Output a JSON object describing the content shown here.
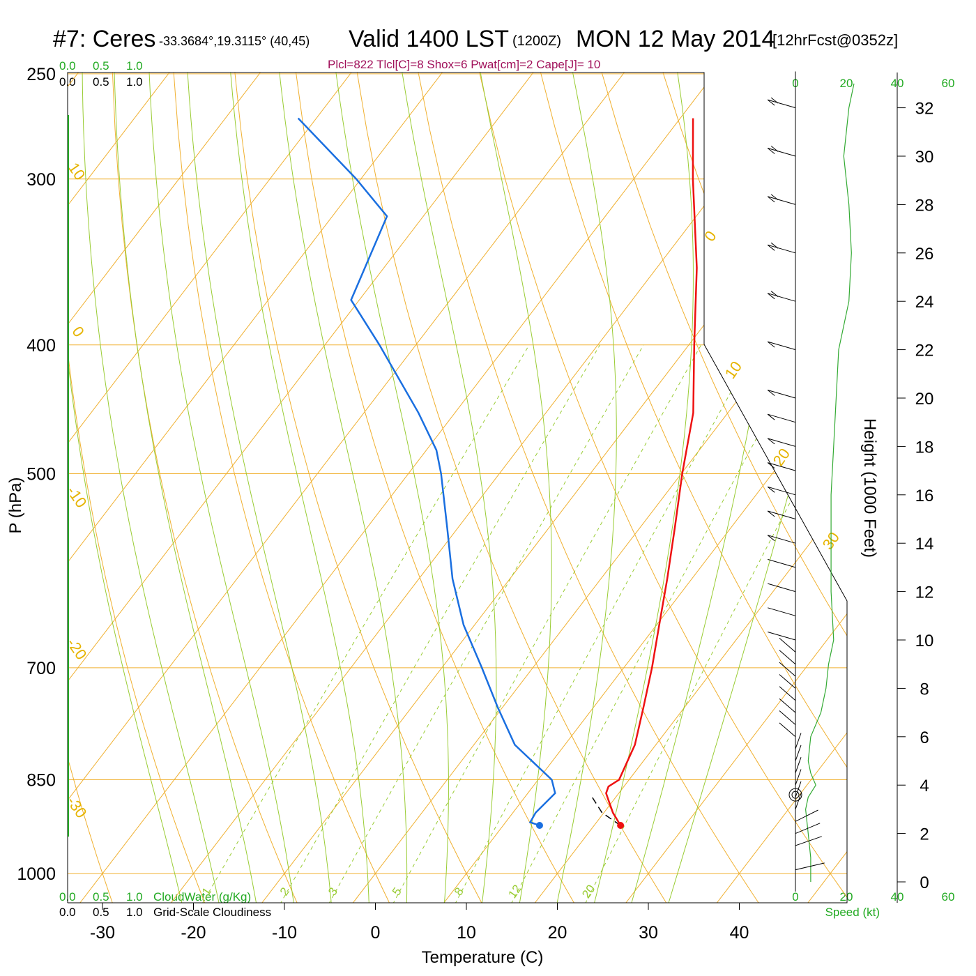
{
  "header": {
    "station": "#7: Ceres",
    "coords": "-33.3684°,19.3115° (40,45)",
    "valid": "Valid 1400 LST",
    "zulu": "(1200Z)",
    "date": "MON 12 May 2014",
    "forecast": "[12hrFcst@0352z]",
    "params": "Plcl=822 Tlcl[C]=8 Shox=6 Pwat[cm]=2 Cape[J]= 10"
  },
  "cloud_scale": {
    "ticks": [
      "0.0",
      "0.5",
      "1.0"
    ],
    "cloudwater_label": "CloudWater (g/Kg)",
    "cloudiness_label": "Grid-Scale Cloudiness"
  },
  "speed_axis": {
    "ticks": [
      "0",
      "20",
      "40",
      "60"
    ],
    "label": "Speed (kt)"
  },
  "colors": {
    "temperature": "#ee1111",
    "dewpoint": "#1a6fe0",
    "isotherm": "#f0b030",
    "dry_adiabat": "#f0b030",
    "moist_adiabat": "#99cc33",
    "mixing_ratio": "#99cc33",
    "speed": "#33aa33",
    "params": "#a0105a"
  },
  "chart_data": {
    "type": "line",
    "diagram": "skew-t log-p",
    "xlabel": "Temperature (C)",
    "ylabel": "P (hPa)",
    "y2label": "Height (1000 Feet)",
    "x_ticks": [
      -30,
      -20,
      -10,
      0,
      10,
      20,
      30,
      40
    ],
    "p_ticks": [
      250,
      300,
      400,
      500,
      700,
      850,
      1000
    ],
    "height_ticks": [
      0,
      2,
      4,
      6,
      8,
      10,
      12,
      14,
      16,
      18,
      20,
      22,
      24,
      26,
      28,
      30,
      32
    ],
    "p_range": [
      1000,
      250
    ],
    "isotherm_labels": [
      {
        "t": 0,
        "text": "0"
      },
      {
        "t": 10,
        "text": "10"
      },
      {
        "t": 20,
        "text": "20"
      },
      {
        "t": 30,
        "text": "30"
      },
      {
        "t": 10,
        "text": "10"
      },
      {
        "t": 0,
        "text": "0"
      },
      {
        "t": -10,
        "text": "-10"
      },
      {
        "t": -20,
        "text": "-20"
      },
      {
        "t": -30,
        "text": "-30"
      }
    ],
    "mixing_ratio_labels": [
      "1",
      "2",
      "3",
      "5",
      "8",
      "12",
      "20"
    ],
    "mixing_ratio_values": [
      1,
      2,
      3,
      5,
      8,
      12,
      20
    ],
    "temperature_profile": {
      "name": "Temperature",
      "p": [
        920,
        900,
        880,
        870,
        860,
        850,
        800,
        750,
        700,
        650,
        600,
        550,
        500,
        450,
        400,
        350,
        300,
        270
      ],
      "t": [
        22.9,
        21.0,
        19.4,
        18.6,
        18.3,
        18.9,
        17.7,
        15.5,
        13.1,
        10.3,
        7.3,
        3.9,
        0.1,
        -3.8,
        -9.4,
        -15.6,
        -23.5,
        -28.6
      ]
    },
    "dewpoint_profile": {
      "name": "Dew point",
      "p": [
        920,
        915,
        900,
        870,
        850,
        800,
        750,
        700,
        650,
        600,
        550,
        500,
        480,
        450,
        400,
        370,
        320,
        300,
        270
      ],
      "t": [
        14.0,
        12.7,
        12.5,
        13.0,
        11.5,
        4.5,
        -0.5,
        -5.6,
        -11.2,
        -16.3,
        -21.1,
        -26.4,
        -28.9,
        -34.0,
        -44.0,
        -50.9,
        -54.0,
        -60.5,
        -72.0
      ]
    },
    "parcel_path": {
      "p": [
        920,
        900,
        875
      ],
      "t": [
        22.9,
        19.8,
        17.3
      ]
    },
    "wind_speed_profile": {
      "height_kft": [
        0,
        1,
        2,
        3,
        3.5,
        4,
        4.5,
        5,
        6,
        7,
        8,
        9,
        10,
        12,
        14,
        16,
        18,
        20,
        22,
        24,
        26,
        28,
        30,
        32,
        33
      ],
      "speed_kt": [
        6,
        6,
        5,
        4,
        5,
        8,
        6,
        5,
        6,
        10,
        12,
        13,
        15,
        14,
        14,
        14,
        15,
        16,
        17,
        21,
        22,
        21,
        19,
        21,
        23
      ]
    },
    "wind_barbs_height_kft": [
      0.5,
      1.5,
      2,
      2.5,
      3,
      3.5,
      4,
      4.5,
      5,
      5.5,
      6,
      6.5,
      7,
      7.5,
      8,
      8.5,
      9,
      9.5,
      10,
      11,
      12,
      13,
      14,
      15,
      16,
      17,
      18,
      19,
      20,
      22,
      24,
      26,
      28,
      30,
      32
    ],
    "grid": true
  }
}
